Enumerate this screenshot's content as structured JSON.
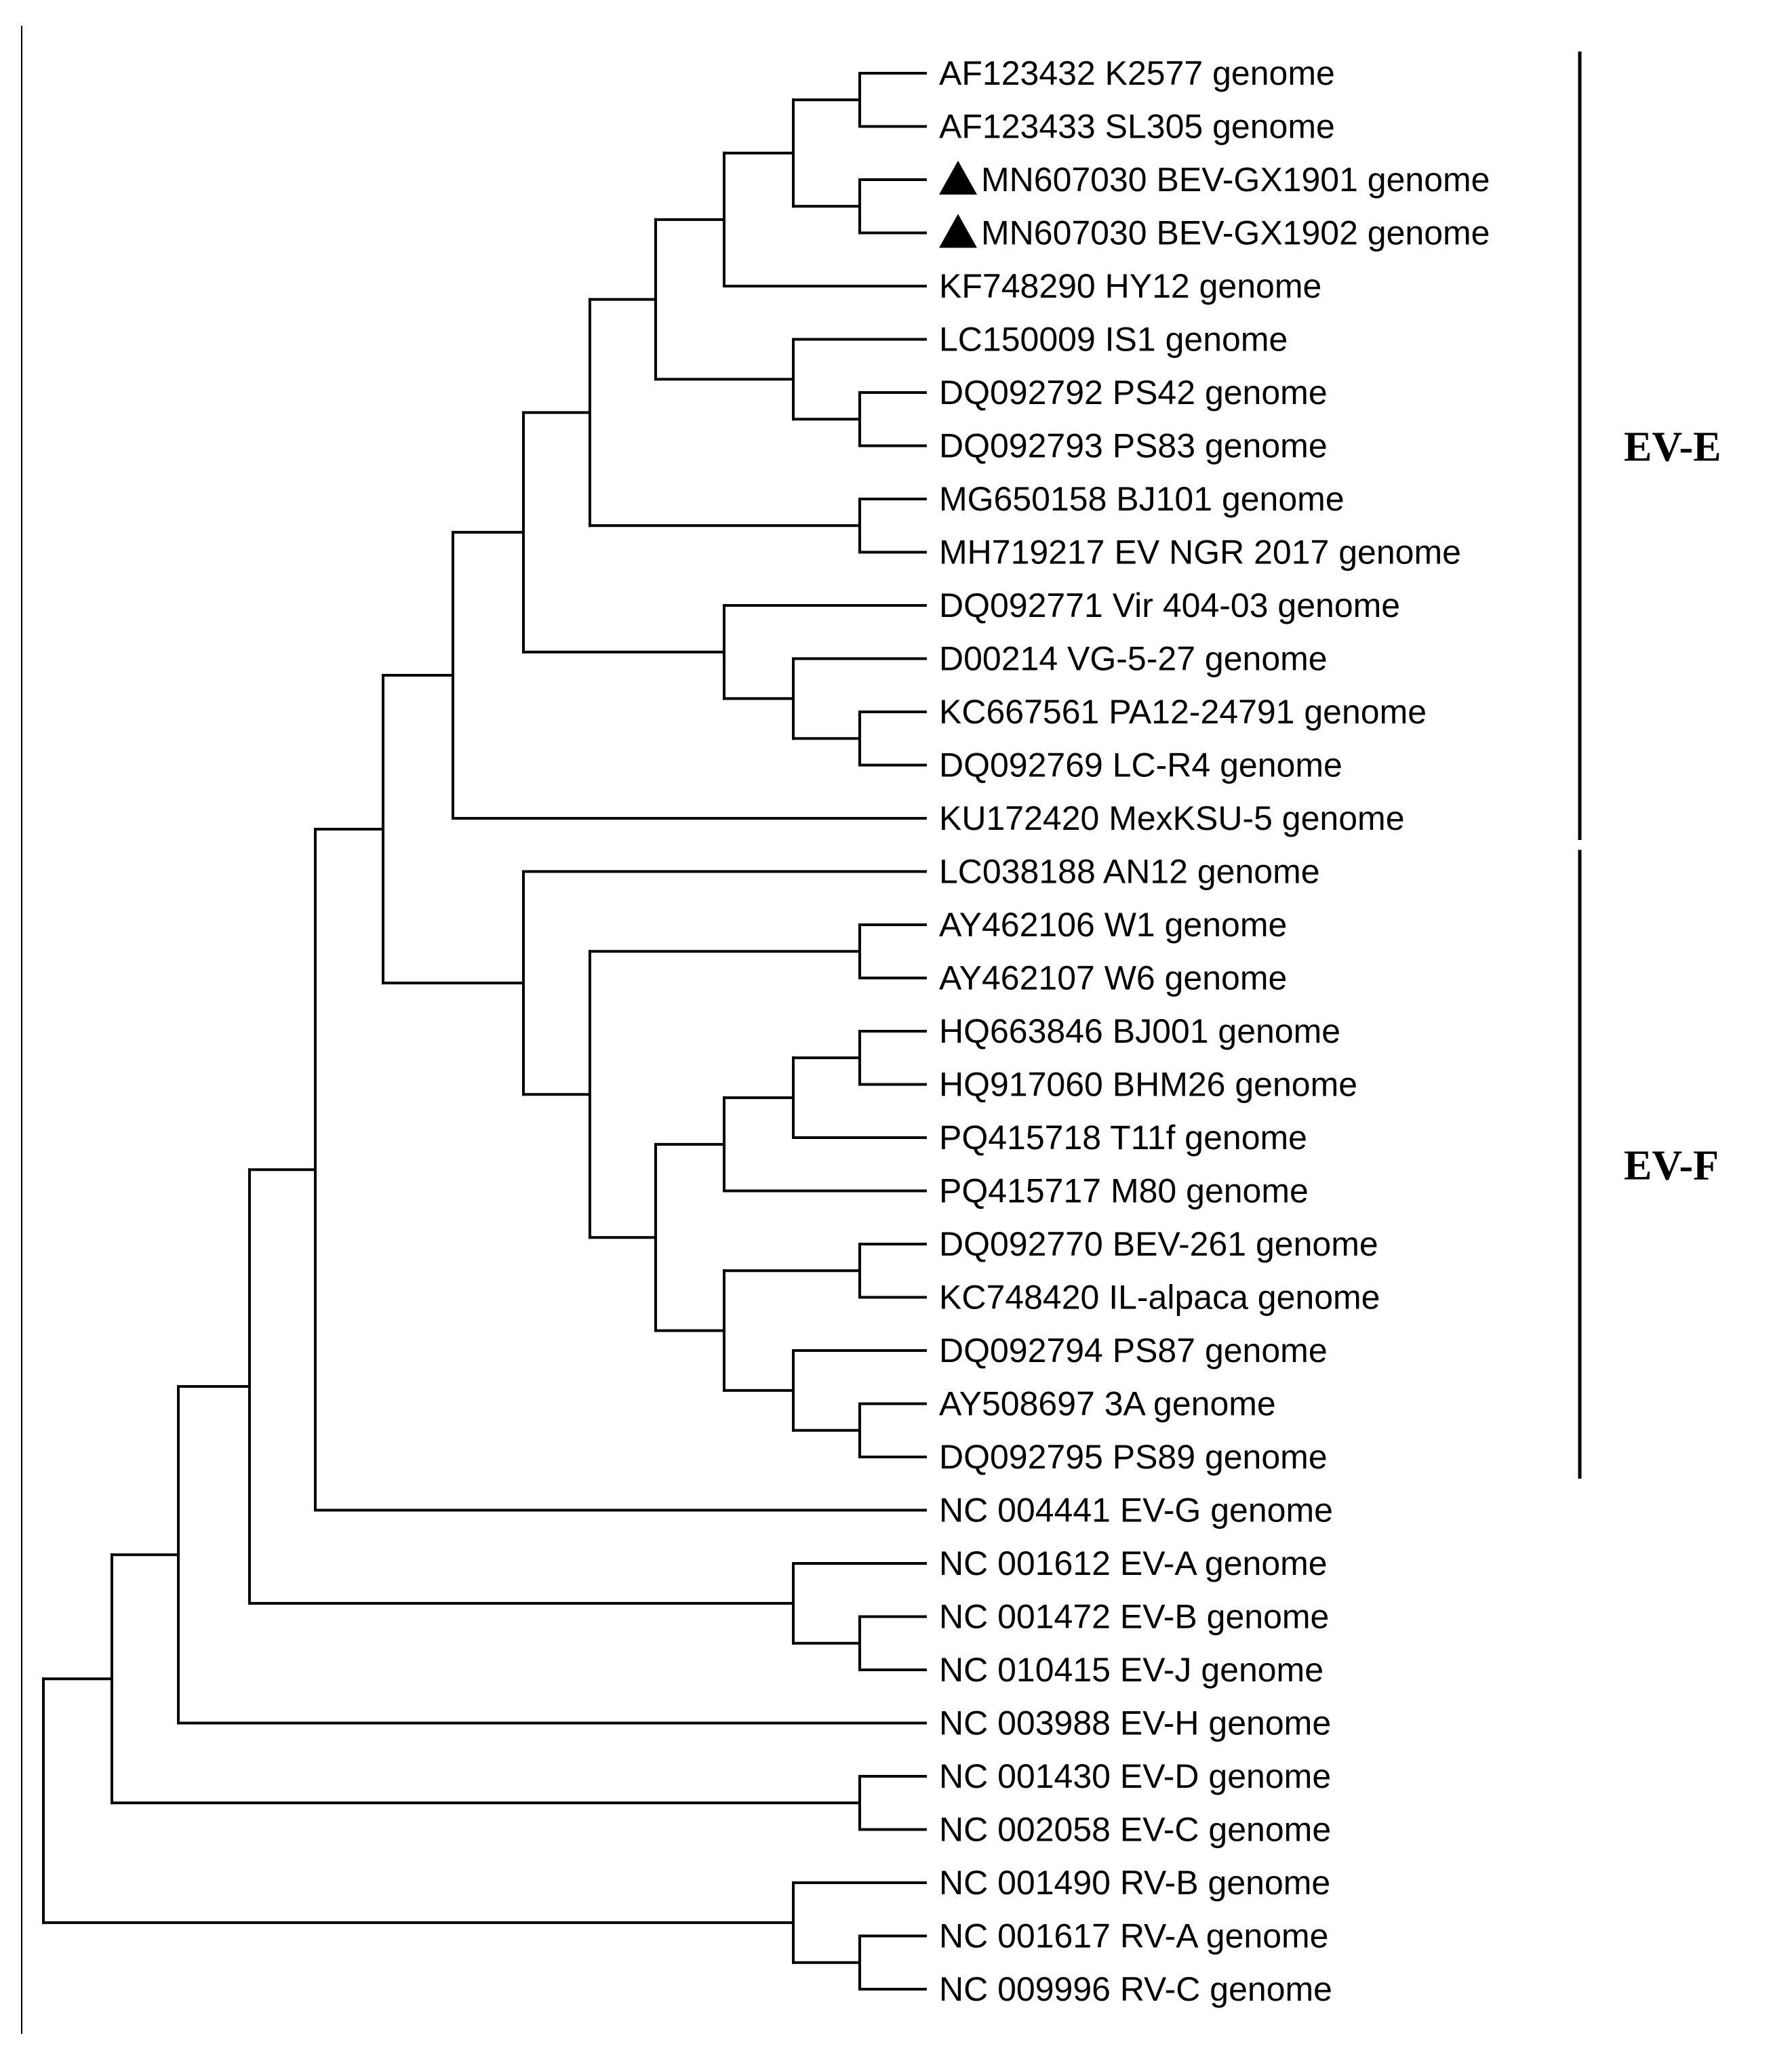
{
  "tree": {
    "leaves": [
      {
        "id": "L1",
        "label": "AF123432 K2577 genome"
      },
      {
        "id": "L2",
        "label": "AF123433 SL305 genome"
      },
      {
        "id": "L3",
        "label": "MN607030 BEV-GX1901 genome",
        "marker": "triangle"
      },
      {
        "id": "L4",
        "label": "MN607030 BEV-GX1902 genome",
        "marker": "triangle"
      },
      {
        "id": "L5",
        "label": "KF748290 HY12 genome"
      },
      {
        "id": "L6",
        "label": "LC150009 IS1 genome"
      },
      {
        "id": "L7",
        "label": "DQ092792 PS42 genome"
      },
      {
        "id": "L8",
        "label": "DQ092793 PS83 genome"
      },
      {
        "id": "L9",
        "label": "MG650158 BJ101 genome"
      },
      {
        "id": "L10",
        "label": "MH719217 EV NGR 2017 genome"
      },
      {
        "id": "L11",
        "label": "DQ092771 Vir 404-03 genome"
      },
      {
        "id": "L12",
        "label": "D00214 VG-5-27 genome"
      },
      {
        "id": "L13",
        "label": "KC667561 PA12-24791 genome"
      },
      {
        "id": "L14",
        "label": "DQ092769 LC-R4 genome"
      },
      {
        "id": "L15",
        "label": "KU172420 MexKSU-5 genome"
      },
      {
        "id": "L16",
        "label": "LC038188 AN12 genome"
      },
      {
        "id": "L17",
        "label": "AY462106 W1 genome"
      },
      {
        "id": "L18",
        "label": "AY462107 W6 genome"
      },
      {
        "id": "L19",
        "label": "HQ663846 BJ001 genome"
      },
      {
        "id": "L20",
        "label": "HQ917060 BHM26 genome"
      },
      {
        "id": "L21",
        "label": "PQ415718 T11f genome"
      },
      {
        "id": "L22",
        "label": "PQ415717 M80 genome"
      },
      {
        "id": "L23",
        "label": "DQ092770 BEV-261 genome"
      },
      {
        "id": "L24",
        "label": "KC748420 IL-alpaca genome"
      },
      {
        "id": "L25",
        "label": "DQ092794 PS87 genome"
      },
      {
        "id": "L26",
        "label": "AY508697 3A genome"
      },
      {
        "id": "L27",
        "label": "DQ092795 PS89 genome"
      },
      {
        "id": "L28",
        "label": "NC 004441 EV-G genome"
      },
      {
        "id": "L29",
        "label": "NC 001612 EV-A genome"
      },
      {
        "id": "L30",
        "label": "NC 001472 EV-B genome"
      },
      {
        "id": "L31",
        "label": "NC 010415 EV-J genome"
      },
      {
        "id": "L32",
        "label": "NC 003988 EV-H genome"
      },
      {
        "id": "L33",
        "label": "NC 001430 EV-D genome"
      },
      {
        "id": "L34",
        "label": "NC 002058 EV-C genome"
      },
      {
        "id": "L35",
        "label": "NC 001490 RV-B genome"
      },
      {
        "id": "L36",
        "label": "NC 001617 RV-A genome"
      },
      {
        "id": "L37",
        "label": "NC 009996 RV-C genome"
      }
    ],
    "clades": [
      {
        "label": "EV-E",
        "first_leaf": "L1",
        "last_leaf": "L15"
      },
      {
        "label": "EV-F",
        "first_leaf": "L16",
        "last_leaf": "L27"
      }
    ]
  }
}
